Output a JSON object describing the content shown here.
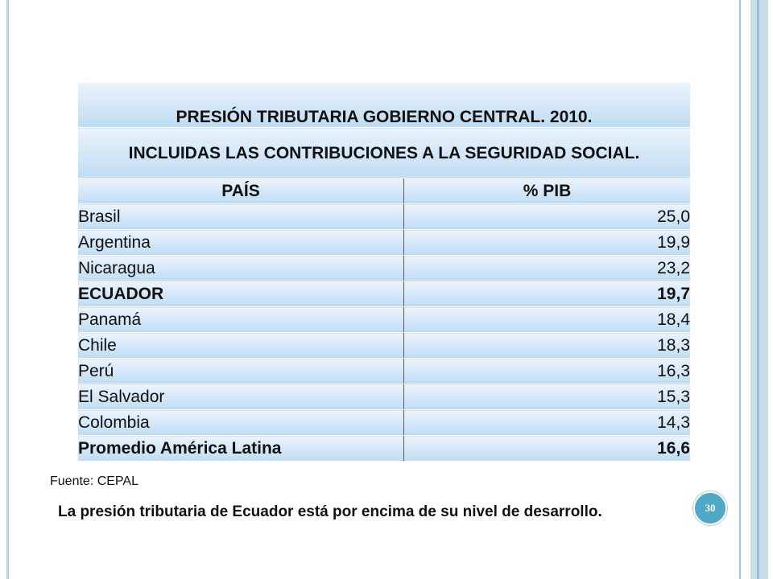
{
  "table": {
    "title": "PRESIÓN TRIBUTARIA GOBIERNO CENTRAL. 2010.",
    "subtitle": "INCLUIDAS LAS CONTRIBUCIONES A LA SEGURIDAD SOCIAL.",
    "header": {
      "country": "PAÍS",
      "value": "% PIB"
    },
    "rows": [
      {
        "country": "Brasil",
        "value": "25,0",
        "bold": false
      },
      {
        "country": "Argentina",
        "value": "19,9",
        "bold": false
      },
      {
        "country": "Nicaragua",
        "value": "23,2",
        "bold": false
      },
      {
        "country": "ECUADOR",
        "value": "19,7",
        "bold": true
      },
      {
        "country": "Panamá",
        "value": "18,4",
        "bold": false
      },
      {
        "country": "Chile",
        "value": "18,3",
        "bold": false
      },
      {
        "country": "Perú",
        "value": "16,3",
        "bold": false
      },
      {
        "country": "El Salvador",
        "value": "15,3",
        "bold": false
      },
      {
        "country": "Colombia",
        "value": "14,3",
        "bold": false
      },
      {
        "country": "Promedio América Latina",
        "value": "16,6",
        "bold": true
      }
    ]
  },
  "source": "Fuente: CEPAL",
  "note": "La presión tributaria de Ecuador está por encima de su nivel de desarrollo.",
  "page_number": "30",
  "colors": {
    "cell_top": "#eaf3fb",
    "cell_bottom": "#bfdcf3",
    "badge": "#4fa8c6"
  }
}
